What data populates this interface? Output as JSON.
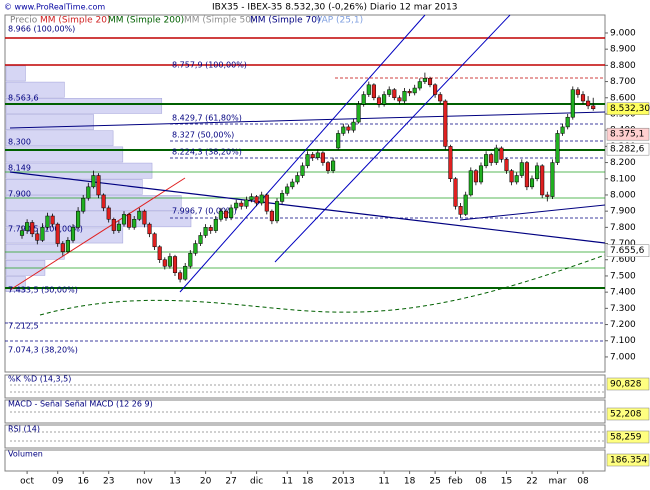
{
  "chart_data": {
    "type": "candlestick",
    "watermark": "© www.ProRealTime.com",
    "title": "IBX35 - IBEX-35   8.532,30 (-0,26%)   Diario   12 mar 2013",
    "legend": [
      "Precio",
      "MM (Simple 20)",
      "MM (Simple 200)",
      "MM (Simple 50)",
      "MM (Simple 70)",
      "VAP (25,1)"
    ],
    "legend_colors": [
      "#808080",
      "#d02020",
      "#006000",
      "#909090",
      "#000080",
      "#80a0e0"
    ],
    "ylim": [
      6907,
      9111
    ],
    "yticks": [
      {
        "value": 7000,
        "label": "7.000"
      },
      {
        "value": 7100,
        "label": "7.100"
      },
      {
        "value": 7200,
        "label": "7.200"
      },
      {
        "value": 7300,
        "label": "7.300"
      },
      {
        "value": 7400,
        "label": "7.400"
      },
      {
        "value": 7500,
        "label": "7.500"
      },
      {
        "value": 7600,
        "label": "7.600"
      },
      {
        "value": 7700,
        "label": "7.700"
      },
      {
        "value": 7800,
        "label": "7.800"
      },
      {
        "value": 7900,
        "label": "7.900"
      },
      {
        "value": 8000,
        "label": "8.000"
      },
      {
        "value": 8100,
        "label": "8.100"
      },
      {
        "value": 8200,
        "label": "8.200"
      },
      {
        "value": 8300,
        "label": "8.300"
      },
      {
        "value": 8400,
        "label": "8.400"
      },
      {
        "value": 8500,
        "label": "8.500"
      },
      {
        "value": 8600,
        "label": "8.600"
      },
      {
        "value": 8700,
        "label": "8.700"
      },
      {
        "value": 8800,
        "label": "8.800"
      },
      {
        "value": 8900,
        "label": "8.900"
      },
      {
        "value": 9000,
        "label": "9.000"
      }
    ],
    "price_labels": [
      {
        "value": 8532.3,
        "label": "8.532,30",
        "color": "#ffff60"
      },
      {
        "value": 8375.1,
        "label": "8.375,1",
        "color": "#ffd0d0"
      },
      {
        "value": 8282.6,
        "label": "8.282,6",
        "color": "#ffffff"
      },
      {
        "value": 7655.6,
        "label": "7.655,6",
        "color": "#ffffff"
      }
    ],
    "annotations": [
      "8.966 (100,00%)",
      "8.757,9 (100,00%)",
      "8.563,6",
      "8.429,7 (61,80%)",
      "8.327 (50,00%)",
      "8.300",
      "8.224,3 (38,20%)",
      "8.149",
      "7.996,7 (0,00%)",
      "7.900",
      "7.790,5 (100,00%)",
      "7.433,5 (50,00%)",
      "7.212,5",
      "7.074,3 (38,20%)"
    ],
    "x_labels": [
      "oct",
      "09",
      "16",
      "23",
      "nov",
      "13",
      "20",
      "27",
      "dic",
      "11",
      "18",
      "2013",
      "11",
      "18",
      "25",
      "feb",
      "08",
      "15",
      "22",
      "mar",
      "08"
    ],
    "vap_bins_start": 7000,
    "vap_bin": 100,
    "vap": [
      0,
      0,
      0,
      0,
      20,
      40,
      60,
      120,
      190,
      180,
      140,
      150,
      120,
      110,
      90,
      160,
      60,
      20,
      0,
      0,
      0
    ],
    "candles": [
      [
        7750,
        7810,
        7730,
        7780
      ],
      [
        7780,
        7850,
        7760,
        7830
      ],
      [
        7830,
        7845,
        7740,
        7760
      ],
      [
        7760,
        7780,
        7695,
        7720
      ],
      [
        7720,
        7825,
        7710,
        7800
      ],
      [
        7800,
        7890,
        7785,
        7870
      ],
      [
        7870,
        7885,
        7800,
        7820
      ],
      [
        7820,
        7830,
        7680,
        7700
      ],
      [
        7700,
        7715,
        7625,
        7650
      ],
      [
        7650,
        7740,
        7640,
        7720
      ],
      [
        7720,
        7820,
        7705,
        7800
      ],
      [
        7800,
        7925,
        7790,
        7900
      ],
      [
        7900,
        8000,
        7885,
        7980
      ],
      [
        7980,
        8075,
        7965,
        8050
      ],
      [
        8050,
        8150,
        8040,
        8120
      ],
      [
        8120,
        8135,
        7980,
        8000
      ],
      [
        8000,
        8010,
        7900,
        7920
      ],
      [
        7920,
        7935,
        7830,
        7850
      ],
      [
        7850,
        7860,
        7760,
        7780
      ],
      [
        7780,
        7840,
        7765,
        7820
      ],
      [
        7820,
        7900,
        7805,
        7880
      ],
      [
        7880,
        7890,
        7785,
        7800
      ],
      [
        7800,
        7870,
        7785,
        7850
      ],
      [
        7850,
        7920,
        7840,
        7900
      ],
      [
        7900,
        7910,
        7800,
        7820
      ],
      [
        7820,
        7830,
        7740,
        7760
      ],
      [
        7760,
        7770,
        7660,
        7680
      ],
      [
        7680,
        7690,
        7580,
        7600
      ],
      [
        7600,
        7615,
        7540,
        7560
      ],
      [
        7560,
        7640,
        7545,
        7620
      ],
      [
        7620,
        7630,
        7500,
        7520
      ],
      [
        7520,
        7535,
        7460,
        7480
      ],
      [
        7480,
        7580,
        7470,
        7560
      ],
      [
        7560,
        7660,
        7545,
        7640
      ],
      [
        7640,
        7720,
        7625,
        7700
      ],
      [
        7700,
        7770,
        7685,
        7750
      ],
      [
        7750,
        7820,
        7735,
        7800
      ],
      [
        7800,
        7815,
        7760,
        7780
      ],
      [
        7780,
        7870,
        7765,
        7850
      ],
      [
        7850,
        7920,
        7835,
        7900
      ],
      [
        7900,
        7910,
        7840,
        7860
      ],
      [
        7860,
        7940,
        7845,
        7920
      ],
      [
        7920,
        7970,
        7905,
        7950
      ],
      [
        7950,
        7965,
        7910,
        7930
      ],
      [
        7930,
        7990,
        7915,
        7970
      ],
      [
        7970,
        8010,
        7955,
        7990
      ],
      [
        7990,
        8000,
        7930,
        7950
      ],
      [
        7950,
        8020,
        7935,
        8000
      ],
      [
        8000,
        8010,
        7880,
        7900
      ],
      [
        7900,
        7910,
        7820,
        7840
      ],
      [
        7840,
        7980,
        7825,
        7960
      ],
      [
        7960,
        8030,
        7945,
        8010
      ],
      [
        8010,
        8070,
        7995,
        8050
      ],
      [
        8050,
        8100,
        8035,
        8080
      ],
      [
        8080,
        8140,
        8065,
        8120
      ],
      [
        8120,
        8200,
        8105,
        8180
      ],
      [
        8180,
        8270,
        8165,
        8250
      ],
      [
        8250,
        8265,
        8210,
        8230
      ],
      [
        8230,
        8280,
        8215,
        8260
      ],
      [
        8260,
        8270,
        8180,
        8200
      ],
      [
        8200,
        8210,
        8130,
        8150
      ],
      [
        8150,
        8230,
        8135,
        8210
      ],
      [
        8290,
        8400,
        8280,
        8380
      ],
      [
        8380,
        8440,
        8365,
        8420
      ],
      [
        8420,
        8435,
        8380,
        8400
      ],
      [
        8400,
        8470,
        8385,
        8450
      ],
      [
        8450,
        8580,
        8440,
        8560
      ],
      [
        8560,
        8640,
        8545,
        8620
      ],
      [
        8620,
        8700,
        8605,
        8680
      ],
      [
        8680,
        8690,
        8585,
        8600
      ],
      [
        8600,
        8615,
        8540,
        8560
      ],
      [
        8560,
        8640,
        8545,
        8620
      ],
      [
        8620,
        8670,
        8605,
        8650
      ],
      [
        8650,
        8660,
        8585,
        8600
      ],
      [
        8600,
        8615,
        8560,
        8580
      ],
      [
        8580,
        8660,
        8565,
        8640
      ],
      [
        8640,
        8655,
        8610,
        8630
      ],
      [
        8630,
        8680,
        8615,
        8660
      ],
      [
        8660,
        8720,
        8645,
        8700
      ],
      [
        8700,
        8755,
        8685,
        8720
      ],
      [
        8720,
        8730,
        8665,
        8680
      ],
      [
        8680,
        8690,
        8600,
        8620
      ],
      [
        8620,
        8635,
        8560,
        8580
      ],
      [
        8580,
        8590,
        8280,
        8300
      ],
      [
        8300,
        8310,
        8080,
        8100
      ],
      [
        8100,
        8110,
        7910,
        7930
      ],
      [
        7930,
        7950,
        7860,
        7880
      ],
      [
        7880,
        8020,
        7870,
        8000
      ],
      [
        8000,
        8170,
        7990,
        8150
      ],
      [
        8150,
        8160,
        8060,
        8080
      ],
      [
        8080,
        8200,
        8065,
        8180
      ],
      [
        8180,
        8270,
        8165,
        8250
      ],
      [
        8250,
        8260,
        8180,
        8200
      ],
      [
        8200,
        8310,
        8185,
        8290
      ],
      [
        8290,
        8300,
        8200,
        8220
      ],
      [
        8220,
        8230,
        8130,
        8150
      ],
      [
        8150,
        8160,
        8060,
        8080
      ],
      [
        8080,
        8140,
        8065,
        8120
      ],
      [
        8120,
        8220,
        8105,
        8200
      ],
      [
        8200,
        8210,
        8030,
        8050
      ],
      [
        8050,
        8120,
        8035,
        8100
      ],
      [
        8100,
        8200,
        8085,
        8180
      ],
      [
        8180,
        8190,
        7980,
        8000
      ],
      [
        8000,
        8020,
        7960,
        7990
      ],
      [
        7990,
        8220,
        7975,
        8200
      ],
      [
        8200,
        8400,
        8185,
        8380
      ],
      [
        8380,
        8440,
        8365,
        8420
      ],
      [
        8420,
        8500,
        8405,
        8480
      ],
      [
        8480,
        8670,
        8465,
        8650
      ],
      [
        8650,
        8665,
        8600,
        8620
      ],
      [
        8620,
        8640,
        8560,
        8580
      ],
      [
        8580,
        8610,
        8530,
        8550
      ],
      [
        8550,
        8600,
        8520,
        8532.3
      ]
    ],
    "up_color": "#20b020",
    "down_color": "#e02020",
    "panels": [
      {
        "label": "%K %D (14,3,5)",
        "value_label": "90,828"
      },
      {
        "label": "MACD - Señal   Señal   MACD (12 26 9)",
        "value_label": "52,208"
      },
      {
        "label": "RSI (14)",
        "value_label": "58,259"
      },
      {
        "label": "Volumen",
        "value_label": "186.354"
      }
    ]
  }
}
